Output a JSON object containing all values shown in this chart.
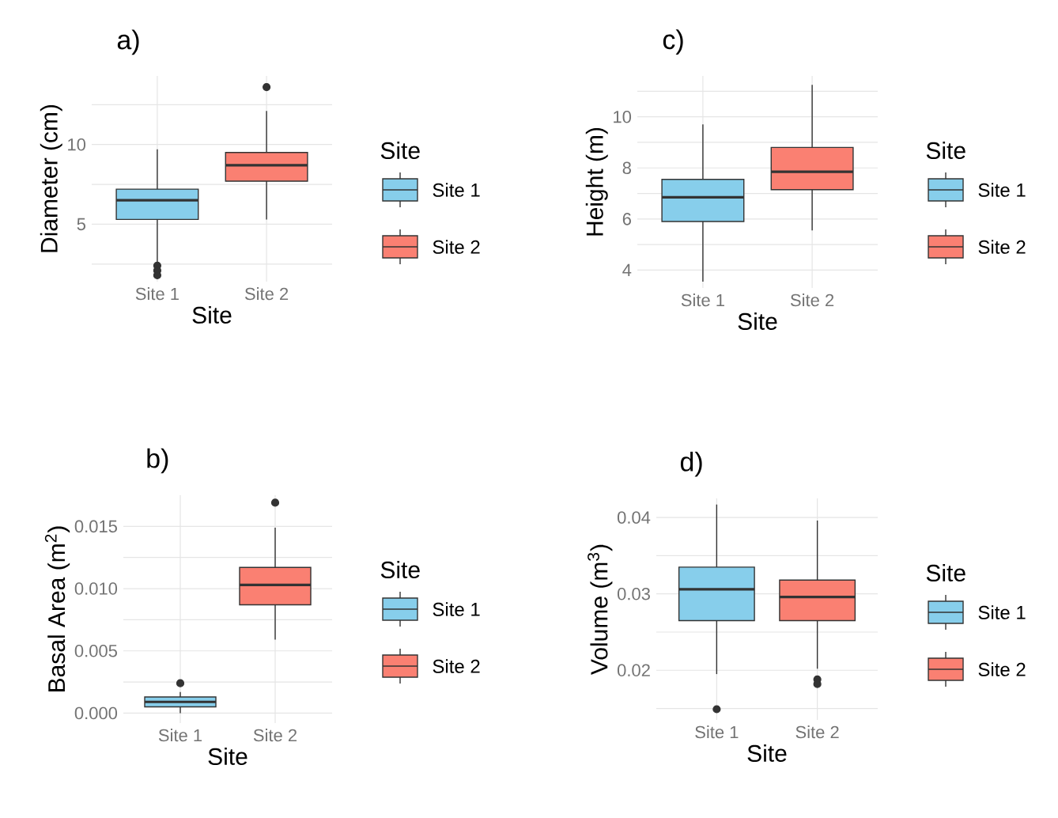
{
  "chart_data": [
    {
      "type": "box",
      "title": "a)",
      "xlabel": "Site",
      "ylabel": "Diameter (cm)",
      "categories": [
        "Site 1",
        "Site 2"
      ],
      "ylim": [
        1.4,
        14.3
      ],
      "yticks": [
        {
          "value": 2.5,
          "label": null
        },
        5,
        {
          "value": 7.5,
          "label": null
        },
        10,
        {
          "value": 12.5,
          "label": null
        }
      ],
      "grid": true,
      "legend": "right",
      "legend_title": "Site",
      "series": [
        {
          "name": "Site 1",
          "color": "#87ceeb",
          "boxes": [
            {
              "low": 2.5,
              "q1": 5.3,
              "median": 6.5,
              "q3": 7.2,
              "high": 9.7,
              "outliers": [
                2.4,
                2.1,
                1.8
              ]
            },
            null
          ]
        },
        {
          "name": "Site 2",
          "color": "#fa8072",
          "boxes": [
            null,
            {
              "low": 5.3,
              "q1": 7.7,
              "median": 8.7,
              "q3": 9.5,
              "high": 12.1,
              "outliers": [
                13.6
              ]
            }
          ]
        }
      ]
    },
    {
      "type": "box",
      "title": "c)",
      "xlabel": "Site",
      "ylabel": "Height (m)",
      "categories": [
        "Site 1",
        "Site 2"
      ],
      "ylim": [
        3.3,
        11.6
      ],
      "yticks": [
        4,
        {
          "value": 5,
          "label": null
        },
        6,
        {
          "value": 7,
          "label": null
        },
        8,
        {
          "value": 9,
          "label": null
        },
        10,
        {
          "value": 11,
          "label": null
        }
      ],
      "grid": true,
      "legend": "right",
      "legend_title": "Site",
      "series": [
        {
          "name": "Site 1",
          "color": "#87ceeb",
          "boxes": [
            {
              "low": 3.55,
              "q1": 5.9,
              "median": 6.85,
              "q3": 7.55,
              "high": 9.7
            },
            null
          ]
        },
        {
          "name": "Site 2",
          "color": "#fa8072",
          "boxes": [
            null,
            {
              "low": 5.55,
              "q1": 7.15,
              "median": 7.85,
              "q3": 8.8,
              "high": 11.25
            }
          ]
        }
      ]
    },
    {
      "type": "box",
      "title": "b)",
      "xlabel": "Site",
      "ylabel": "Basal Area (m$^{2}$)",
      "categories": [
        "Site 1",
        "Site 2"
      ],
      "ylim": [
        -0.0008,
        0.0175
      ],
      "yticks": [
        {
          "value": 0,
          "label": "0.000"
        },
        {
          "value": 0.0025,
          "label": null
        },
        {
          "value": 0.005,
          "label": "0.005"
        },
        {
          "value": 0.0075,
          "label": null
        },
        {
          "value": 0.01,
          "label": "0.010"
        },
        {
          "value": 0.0125,
          "label": null
        },
        {
          "value": 0.015,
          "label": "0.015"
        }
      ],
      "grid": true,
      "legend": "right",
      "legend_title": "Site",
      "series": [
        {
          "name": "Site 1",
          "color": "#87ceeb",
          "boxes": [
            {
              "low": 0.0,
              "q1": 0.0005,
              "median": 0.0009,
              "q3": 0.0013,
              "high": 0.0017,
              "outliers": [
                0.0024
              ]
            },
            null
          ]
        },
        {
          "name": "Site 2",
          "color": "#fa8072",
          "boxes": [
            null,
            {
              "low": 0.0059,
              "q1": 0.0087,
              "median": 0.0103,
              "q3": 0.0117,
              "high": 0.0149,
              "outliers": [
                0.0169
              ]
            }
          ]
        }
      ]
    },
    {
      "type": "box",
      "title": "d)",
      "xlabel": "Site",
      "ylabel": "Volume (m$^{3}$)",
      "categories": [
        "Site 1",
        "Site 2"
      ],
      "ylim": [
        0.0135,
        0.0425
      ],
      "yticks": [
        {
          "value": 0.015,
          "label": null
        },
        0.02,
        {
          "value": 0.025,
          "label": null
        },
        0.03,
        {
          "value": 0.035,
          "label": null
        },
        0.04
      ],
      "grid": true,
      "legend": "right",
      "legend_title": "Site",
      "series": [
        {
          "name": "Site 1",
          "color": "#87ceeb",
          "boxes": [
            {
              "low": 0.0195,
              "q1": 0.0265,
              "median": 0.0306,
              "q3": 0.0335,
              "high": 0.0417,
              "outliers": [
                0.0149
              ]
            },
            null
          ]
        },
        {
          "name": "Site 2",
          "color": "#fa8072",
          "boxes": [
            null,
            {
              "low": 0.0202,
              "q1": 0.0265,
              "median": 0.0296,
              "q3": 0.0318,
              "high": 0.0396,
              "outliers": [
                0.0188,
                0.0182
              ]
            }
          ]
        }
      ]
    }
  ]
}
